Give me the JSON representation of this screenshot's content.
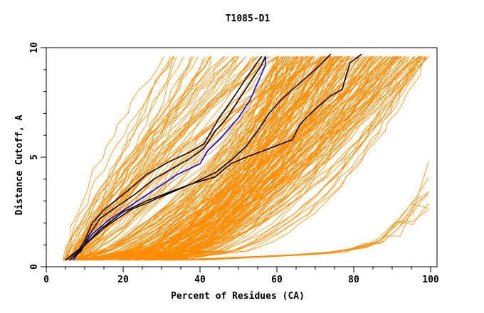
{
  "chart_data": {
    "type": "line",
    "title": "T1085-D1",
    "xlabel": "Percent of Residues (CA)",
    "ylabel": "Distance Cutoff, A",
    "xlim": [
      0,
      100
    ],
    "ylim": [
      0,
      10
    ],
    "x_ticks": [
      "0",
      "20",
      "40",
      "60",
      "80",
      "100"
    ],
    "y_ticks": [
      "0",
      "5",
      "10"
    ],
    "grid": false,
    "colors": {
      "background_models": "#ff8c00",
      "highlight_black": "#000000",
      "highlight_blue": "#0000ff"
    },
    "series": [
      {
        "color": "#0000ff",
        "points": [
          [
            7,
            0.3
          ],
          [
            9,
            0.8
          ],
          [
            12,
            1.5
          ],
          [
            16,
            2.1
          ],
          [
            22,
            2.8
          ],
          [
            28,
            3.5
          ],
          [
            34,
            4.2
          ],
          [
            40,
            4.7
          ],
          [
            42,
            5.3
          ],
          [
            45,
            5.8
          ],
          [
            50,
            6.8
          ],
          [
            53,
            7.6
          ],
          [
            55,
            8.4
          ],
          [
            57,
            9.2
          ],
          [
            57,
            9.6
          ]
        ]
      },
      {
        "color": "#000000",
        "points": [
          [
            6,
            0.3
          ],
          [
            9,
            0.7
          ],
          [
            11,
            1.4
          ],
          [
            14,
            2.2
          ],
          [
            18,
            2.7
          ],
          [
            23,
            3.3
          ],
          [
            28,
            4.0
          ],
          [
            33,
            4.5
          ],
          [
            37,
            4.9
          ],
          [
            41,
            5.4
          ],
          [
            44,
            6.2
          ],
          [
            47,
            6.8
          ],
          [
            50,
            7.6
          ],
          [
            53,
            8.4
          ],
          [
            56,
            9.2
          ],
          [
            57,
            9.6
          ]
        ]
      },
      {
        "color": "#000000",
        "points": [
          [
            6,
            0.3
          ],
          [
            8,
            0.6
          ],
          [
            10,
            1.2
          ],
          [
            12,
            2.0
          ],
          [
            15,
            2.6
          ],
          [
            20,
            3.3
          ],
          [
            26,
            4.2
          ],
          [
            32,
            4.8
          ],
          [
            37,
            5.2
          ],
          [
            41,
            5.6
          ],
          [
            45,
            6.8
          ],
          [
            49,
            7.8
          ],
          [
            52,
            8.6
          ],
          [
            56,
            9.6
          ]
        ]
      },
      {
        "color": "#000000",
        "points": [
          [
            5,
            0.3
          ],
          [
            9,
            0.8
          ],
          [
            14,
            1.7
          ],
          [
            20,
            2.5
          ],
          [
            26,
            3.0
          ],
          [
            32,
            3.4
          ],
          [
            38,
            3.8
          ],
          [
            44,
            4.1
          ],
          [
            48,
            4.7
          ],
          [
            52,
            5.0
          ],
          [
            58,
            5.4
          ],
          [
            64,
            5.8
          ],
          [
            66,
            6.5
          ],
          [
            70,
            7.2
          ],
          [
            74,
            7.8
          ],
          [
            77,
            8.1
          ],
          [
            78,
            8.7
          ],
          [
            79,
            9.3
          ],
          [
            82,
            9.7
          ]
        ]
      },
      {
        "color": "#000000",
        "points": [
          [
            5,
            0.3
          ],
          [
            10,
            1.0
          ],
          [
            16,
            1.9
          ],
          [
            22,
            2.6
          ],
          [
            30,
            3.2
          ],
          [
            38,
            3.8
          ],
          [
            44,
            4.3
          ],
          [
            49,
            5.0
          ],
          [
            52,
            5.5
          ],
          [
            55,
            6.2
          ],
          [
            58,
            7.0
          ],
          [
            61,
            7.6
          ],
          [
            66,
            8.4
          ],
          [
            70,
            9.0
          ],
          [
            74,
            9.7
          ]
        ]
      }
    ]
  }
}
